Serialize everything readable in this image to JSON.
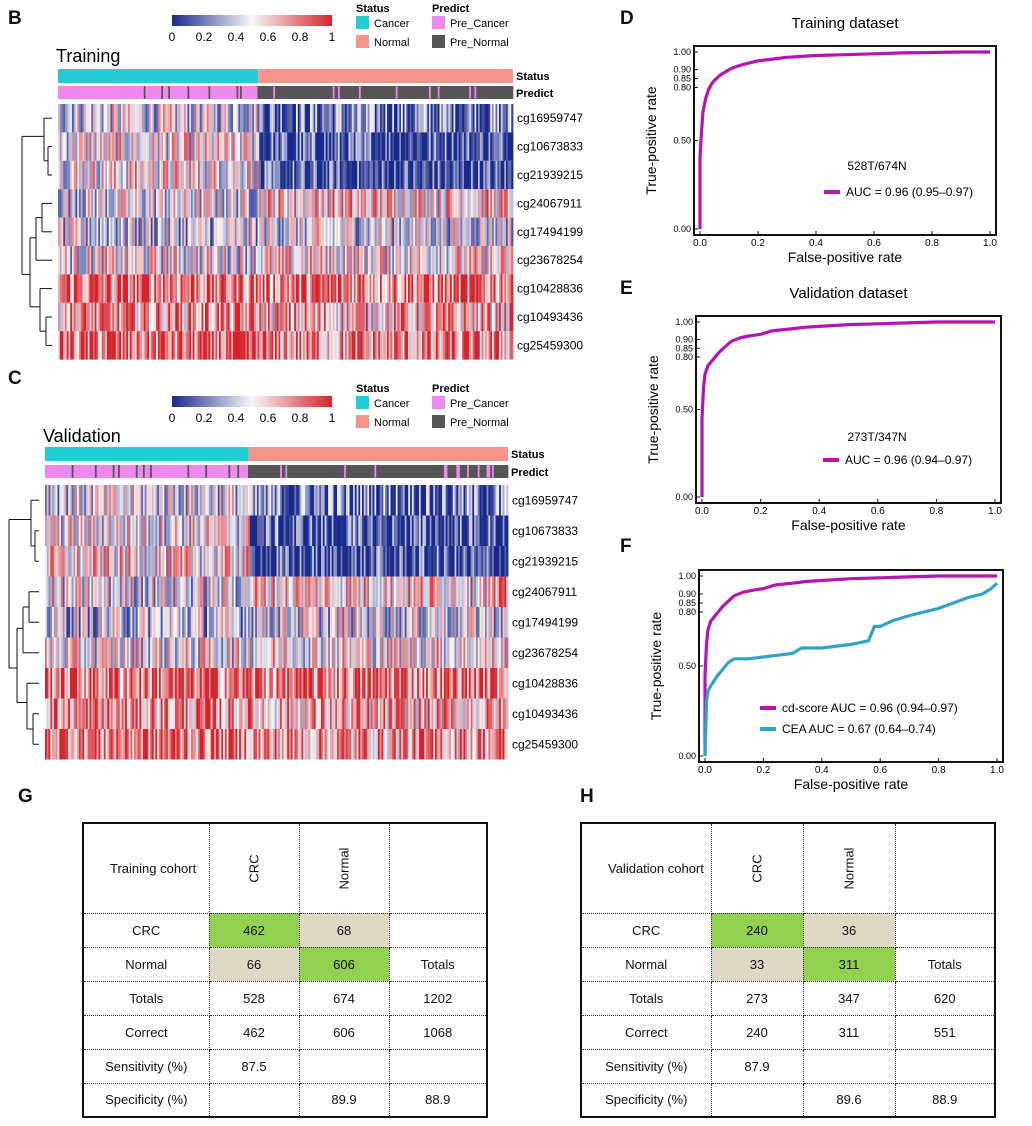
{
  "panels": {
    "B": "B",
    "C": "C",
    "D": "D",
    "E": "E",
    "F": "F",
    "G": "G",
    "H": "H"
  },
  "colors": {
    "cancer": "#22cdd6",
    "normal": "#f4948a",
    "pre_cancer": "#ee88ee",
    "pre_normal": "#555555",
    "heat_low": "#1a2a8c",
    "heat_mid": "#f7f7f7",
    "heat_high": "#d4232c",
    "roc_cd": "#b514b5",
    "roc_cea": "#31a3c6"
  },
  "legend": {
    "colorbar_ticks": [
      "0",
      "0.2",
      "0.4",
      "0.6",
      "0.8",
      "1"
    ],
    "status_title": "Status",
    "predict_title": "Predict",
    "status_items": [
      "Cancer",
      "Normal"
    ],
    "predict_items": [
      "Pre_Cancer",
      "Pre_Normal"
    ]
  },
  "chart_data": [
    {
      "type": "heatmap",
      "title": "Training",
      "annotation_rows": [
        "Status",
        "Predict"
      ],
      "cancer_fraction": 0.44,
      "rows": [
        "cg16959747",
        "cg10673833",
        "cg21939215",
        "cg24067911",
        "cg17494199",
        "cg23678254",
        "cg10428836",
        "cg10493436",
        "cg25459300"
      ],
      "row_means_cancer": [
        0.45,
        0.5,
        0.55,
        0.45,
        0.4,
        0.5,
        0.82,
        0.72,
        0.82
      ],
      "row_means_normal": [
        0.2,
        0.08,
        0.05,
        0.62,
        0.45,
        0.55,
        0.8,
        0.65,
        0.72
      ],
      "value_range": [
        0,
        1
      ]
    },
    {
      "type": "heatmap",
      "title": "Validation",
      "annotation_rows": [
        "Status",
        "Predict"
      ],
      "cancer_fraction": 0.44,
      "rows": [
        "cg16959747",
        "cg10673833",
        "cg21939215",
        "cg24067911",
        "cg17494199",
        "cg23678254",
        "cg10428836",
        "cg10493436",
        "cg25459300"
      ],
      "row_means_cancer": [
        0.45,
        0.5,
        0.55,
        0.45,
        0.4,
        0.5,
        0.82,
        0.72,
        0.82
      ],
      "row_means_normal": [
        0.2,
        0.08,
        0.05,
        0.62,
        0.45,
        0.55,
        0.8,
        0.65,
        0.72
      ],
      "value_range": [
        0,
        1
      ]
    },
    {
      "type": "line",
      "title": "Training dataset",
      "xlabel": "False-positive rate",
      "ylabel": "True-positive rate",
      "xlim": [
        0,
        1
      ],
      "ylim": [
        0,
        1
      ],
      "x_ticks": [
        "0.0",
        "0.2",
        "0.4",
        "0.6",
        "0.8",
        "1.0"
      ],
      "y_ticks": [
        {
          "v": 0,
          "label": "0.00"
        },
        {
          "v": 0.5,
          "label": "0.50"
        },
        {
          "v": 0.8,
          "label": "0.80"
        },
        {
          "v": 0.85,
          "label": "0.85"
        },
        {
          "v": 0.9,
          "label": "0.90"
        },
        {
          "v": 1,
          "label": "1.00"
        }
      ],
      "annotation": "528T/674N",
      "series": [
        {
          "name": "AUC = 0.96 (0.95–0.97)",
          "color": "#b514b5",
          "x": [
            0,
            0,
            0.005,
            0.01,
            0.02,
            0.03,
            0.04,
            0.05,
            0.07,
            0.1,
            0.12,
            0.15,
            0.2,
            0.25,
            0.3,
            0.4,
            0.5,
            0.6,
            0.7,
            0.8,
            0.9,
            1.0
          ],
          "y": [
            0,
            0.4,
            0.55,
            0.66,
            0.74,
            0.79,
            0.82,
            0.84,
            0.87,
            0.9,
            0.915,
            0.93,
            0.95,
            0.96,
            0.97,
            0.98,
            0.985,
            0.99,
            0.995,
            0.997,
            1.0,
            1.0
          ]
        }
      ]
    },
    {
      "type": "line",
      "title": "Validation dataset",
      "xlabel": "False-positive rate",
      "ylabel": "True-positive rate",
      "xlim": [
        0,
        1
      ],
      "ylim": [
        0,
        1
      ],
      "x_ticks": [
        "0.0",
        "0.2",
        "0.4",
        "0.6",
        "0.8",
        "1.0"
      ],
      "y_ticks": [
        {
          "v": 0,
          "label": "0.00"
        },
        {
          "v": 0.5,
          "label": "0.50"
        },
        {
          "v": 0.8,
          "label": "0.80"
        },
        {
          "v": 0.85,
          "label": "0.85"
        },
        {
          "v": 0.9,
          "label": "0.90"
        },
        {
          "v": 1,
          "label": "1.00"
        }
      ],
      "annotation": "273T/347N",
      "series": [
        {
          "name": "AUC = 0.96 (0.94–0.97)",
          "color": "#b514b5",
          "x": [
            0,
            0,
            0.005,
            0.01,
            0.02,
            0.04,
            0.06,
            0.08,
            0.1,
            0.13,
            0.16,
            0.2,
            0.24,
            0.3,
            0.35,
            0.4,
            0.5,
            0.6,
            0.7,
            0.8,
            0.9,
            1.0
          ],
          "y": [
            0,
            0.45,
            0.62,
            0.7,
            0.75,
            0.79,
            0.83,
            0.86,
            0.89,
            0.91,
            0.92,
            0.93,
            0.95,
            0.96,
            0.97,
            0.975,
            0.985,
            0.99,
            0.995,
            1.0,
            1.0,
            1.0
          ]
        }
      ]
    },
    {
      "type": "line",
      "title": "",
      "xlabel": "False-positive rate",
      "ylabel": "True-positive rate",
      "xlim": [
        0,
        1
      ],
      "ylim": [
        0,
        1
      ],
      "x_ticks": [
        "0.0",
        "0.2",
        "0.4",
        "0.6",
        "0.8",
        "1.0"
      ],
      "y_ticks": [
        {
          "v": 0,
          "label": "0.00"
        },
        {
          "v": 0.5,
          "label": "0.50"
        },
        {
          "v": 0.8,
          "label": "0.80"
        },
        {
          "v": 0.85,
          "label": "0.85"
        },
        {
          "v": 0.9,
          "label": "0.90"
        },
        {
          "v": 1,
          "label": "1.00"
        }
      ],
      "series": [
        {
          "name": "cd-score AUC = 0.96 (0.94–0.97)",
          "color": "#b514b5",
          "x": [
            0,
            0,
            0.005,
            0.01,
            0.02,
            0.04,
            0.06,
            0.08,
            0.1,
            0.13,
            0.16,
            0.2,
            0.24,
            0.3,
            0.35,
            0.4,
            0.5,
            0.6,
            0.7,
            0.8,
            0.9,
            1.0
          ],
          "y": [
            0,
            0.45,
            0.62,
            0.7,
            0.75,
            0.79,
            0.83,
            0.86,
            0.89,
            0.91,
            0.92,
            0.93,
            0.95,
            0.96,
            0.97,
            0.975,
            0.985,
            0.99,
            0.995,
            1.0,
            1.0,
            1.0
          ]
        },
        {
          "name": "CEA AUC = 0.67 (0.64–0.74)",
          "color": "#31a3c6",
          "x": [
            0,
            0.005,
            0.01,
            0.02,
            0.04,
            0.06,
            0.08,
            0.1,
            0.15,
            0.2,
            0.25,
            0.3,
            0.33,
            0.35,
            0.4,
            0.5,
            0.56,
            0.58,
            0.6,
            0.64,
            0.7,
            0.75,
            0.8,
            0.85,
            0.9,
            0.95,
            0.98,
            1.0
          ],
          "y": [
            0,
            0.3,
            0.36,
            0.39,
            0.44,
            0.48,
            0.52,
            0.54,
            0.54,
            0.55,
            0.56,
            0.57,
            0.6,
            0.6,
            0.6,
            0.62,
            0.64,
            0.72,
            0.72,
            0.75,
            0.78,
            0.8,
            0.82,
            0.85,
            0.88,
            0.9,
            0.93,
            0.96
          ]
        }
      ]
    }
  ],
  "tables": [
    {
      "header": "Training cohort",
      "col_labels": [
        "CRC",
        "Normal"
      ],
      "rows": [
        {
          "label": "CRC",
          "c1": "462",
          "c2": "68",
          "c3": ""
        },
        {
          "label": "Normal",
          "c1": "66",
          "c2": "606",
          "c3": "Totals"
        },
        {
          "label": "Totals",
          "c1": "528",
          "c2": "674",
          "c3": "1202"
        },
        {
          "label": "Correct",
          "c1": "462",
          "c2": "606",
          "c3": "1068"
        },
        {
          "label": "Sensitivity (%)",
          "c1": "87.5",
          "c2": "",
          "c3": ""
        },
        {
          "label": "Specificity (%)",
          "c1": "",
          "c2": "89.9",
          "c3": "88.9"
        }
      ]
    },
    {
      "header": "Validation cohort",
      "col_labels": [
        "CRC",
        "Normal"
      ],
      "rows": [
        {
          "label": "CRC",
          "c1": "240",
          "c2": "36",
          "c3": ""
        },
        {
          "label": "Normal",
          "c1": "33",
          "c2": "311",
          "c3": "Totals"
        },
        {
          "label": "Totals",
          "c1": "273",
          "c2": "347",
          "c3": "620"
        },
        {
          "label": "Correct",
          "c1": "240",
          "c2": "311",
          "c3": "551"
        },
        {
          "label": "Sensitivity (%)",
          "c1": "87.9",
          "c2": "",
          "c3": ""
        },
        {
          "label": "Specificity (%)",
          "c1": "",
          "c2": "89.6",
          "c3": "88.9"
        }
      ]
    }
  ]
}
